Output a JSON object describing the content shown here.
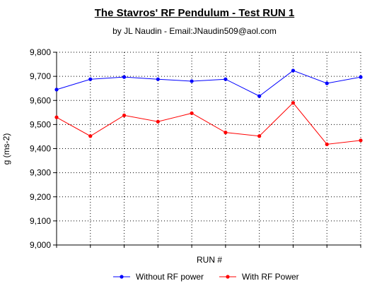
{
  "chart_data": {
    "type": "line",
    "title": "The Stavros' RF Pendulum - Test RUN 1",
    "subtitle": "by JL Naudin - Email:JNaudin509@aol.com",
    "xlabel": "RUN #",
    "ylabel": "g (ms-2)",
    "ylim": [
      9.0,
      9.8
    ],
    "yticks": [
      9.0,
      9.1,
      9.2,
      9.3,
      9.4,
      9.5,
      9.6,
      9.7,
      9.8
    ],
    "ytick_labels": [
      "9,000",
      "9,100",
      "9,200",
      "9,300",
      "9,400",
      "9,500",
      "9,600",
      "9,700",
      "9,800"
    ],
    "x": [
      1,
      2,
      3,
      4,
      5,
      6,
      7,
      8,
      9,
      10
    ],
    "grid": true,
    "legend_position": "bottom",
    "series": [
      {
        "name": "Without RF power",
        "color": "#0000ff",
        "values": [
          9.645,
          9.688,
          9.697,
          9.688,
          9.68,
          9.688,
          9.618,
          9.724,
          9.671,
          9.697
        ]
      },
      {
        "name": "With RF Power",
        "color": "#ff0000",
        "values": [
          9.53,
          9.452,
          9.538,
          9.512,
          9.547,
          9.467,
          9.452,
          9.59,
          9.418,
          9.434
        ]
      }
    ]
  }
}
